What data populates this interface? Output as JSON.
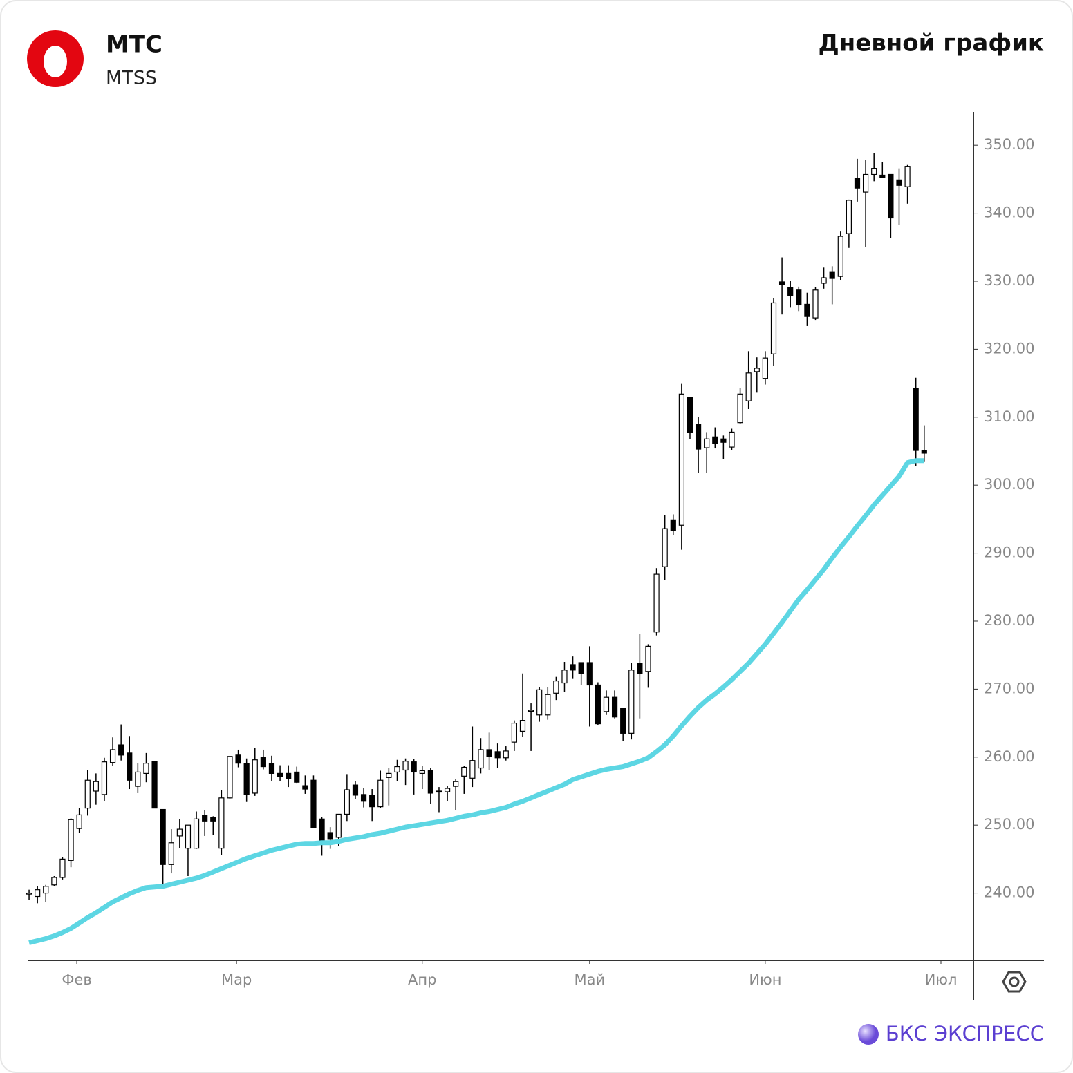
{
  "header": {
    "company": "МТС",
    "ticker": "MTSS",
    "brand": "БКС ЭКСПРЕСС"
  },
  "chart_data": {
    "type": "candlestick",
    "title": "Дневной график",
    "up_color": "#ffffff",
    "down_color": "#000000",
    "ma_color": "#5dd6e3",
    "ylim": [
      230.1,
      355.1
    ],
    "yticks": [
      {
        "value": 240,
        "label": "240.00"
      },
      {
        "value": 250,
        "label": "250.00"
      },
      {
        "value": 260,
        "label": "260.00"
      },
      {
        "value": 270,
        "label": "270.00"
      },
      {
        "value": 280,
        "label": "280.00"
      },
      {
        "value": 290,
        "label": "290.00"
      },
      {
        "value": 300,
        "label": "300.00"
      },
      {
        "value": 310,
        "label": "310.00"
      },
      {
        "value": 320,
        "label": "320.00"
      },
      {
        "value": 330,
        "label": "330.00"
      },
      {
        "value": 340,
        "label": "340.00"
      },
      {
        "value": 350,
        "label": "350.00"
      }
    ],
    "xlim": [
      -0.17,
      113.05
    ],
    "xticks": [
      {
        "value": 5.7,
        "label": "Фев"
      },
      {
        "value": 24.8,
        "label": "Мар"
      },
      {
        "value": 47,
        "label": "Апр"
      },
      {
        "value": 67,
        "label": "Май"
      },
      {
        "value": 88,
        "label": "Июн"
      },
      {
        "value": 109,
        "label": "Июл"
      }
    ],
    "ohlc": [
      [
        240,
        240.5,
        239,
        240
      ],
      [
        239.5,
        241,
        238.5,
        240.5
      ],
      [
        240,
        241.2,
        238.7,
        241
      ],
      [
        241.2,
        242.5,
        241,
        242.3
      ],
      [
        242.3,
        245.3,
        242,
        245
      ],
      [
        244.8,
        251,
        243.8,
        250.8
      ],
      [
        249.5,
        252.5,
        248.8,
        251.5
      ],
      [
        252.5,
        258.1,
        251.4,
        256.6
      ],
      [
        255,
        257.6,
        253,
        256.4
      ],
      [
        254.5,
        259.9,
        253.5,
        259.3
      ],
      [
        259.2,
        262.9,
        258.7,
        261.1
      ],
      [
        261.8,
        264.8,
        259.5,
        260.3
      ],
      [
        260.6,
        263.1,
        255.3,
        256.6
      ],
      [
        255.7,
        259.1,
        254.7,
        257.8
      ],
      [
        257.6,
        260.6,
        256.3,
        259.1
      ],
      [
        259.4,
        259.4,
        252.6,
        252.5
      ],
      [
        252.3,
        252.3,
        241.3,
        244.2
      ],
      [
        244.2,
        249.4,
        242.9,
        247.4
      ],
      [
        248.4,
        250.9,
        246.6,
        249.4
      ],
      [
        246.6,
        249.9,
        242.5,
        250
      ],
      [
        246.6,
        252,
        246.5,
        250.9
      ],
      [
        251.4,
        252.2,
        248.4,
        250.6
      ],
      [
        251.1,
        251.3,
        248.5,
        250.6
      ],
      [
        246.6,
        255.2,
        245.6,
        254
      ],
      [
        254,
        260.1,
        253.9,
        260.1
      ],
      [
        260.3,
        261.1,
        258.5,
        259.1
      ],
      [
        259.1,
        259.8,
        253.4,
        254.5
      ],
      [
        254.7,
        261.3,
        254.3,
        259.6
      ],
      [
        260,
        261.1,
        258.2,
        258.6
      ],
      [
        259.1,
        260.2,
        256.5,
        257.6
      ],
      [
        257.6,
        258.8,
        256.5,
        257.1
      ],
      [
        257.6,
        258.8,
        255.6,
        256.8
      ],
      [
        257.8,
        258.6,
        256.2,
        256.3
      ],
      [
        255.8,
        257.3,
        254.6,
        255.3
      ],
      [
        256.6,
        257.3,
        249.7,
        249.6
      ],
      [
        250.9,
        251.2,
        245.5,
        247.2
      ],
      [
        248.9,
        249.7,
        246.5,
        247.9
      ],
      [
        248.2,
        251.2,
        246.9,
        251.6
      ],
      [
        251.6,
        257.5,
        250.6,
        255.2
      ],
      [
        255.9,
        256.5,
        253.8,
        254.4
      ],
      [
        254.5,
        255.5,
        252.6,
        253.5
      ],
      [
        254.4,
        255.3,
        250.6,
        252.7
      ],
      [
        252.7,
        258,
        252.5,
        256.6
      ],
      [
        257,
        258.4,
        252.9,
        257.6
      ],
      [
        257.8,
        259.6,
        256.5,
        258.6
      ],
      [
        258.1,
        259.8,
        255.9,
        259.4
      ],
      [
        259.3,
        259.7,
        254.5,
        257.8
      ],
      [
        257.6,
        258.7,
        255.3,
        258
      ],
      [
        258,
        258.4,
        253.1,
        254.7
      ],
      [
        255,
        255.6,
        251.9,
        254.9
      ],
      [
        254.9,
        255.8,
        253.5,
        255.4
      ],
      [
        255.7,
        256.8,
        252.2,
        256.4
      ],
      [
        257.2,
        258.7,
        254.6,
        258.5
      ],
      [
        256.9,
        264.5,
        255.6,
        259.5
      ],
      [
        258.4,
        262.8,
        257.6,
        261.1
      ],
      [
        261.1,
        263.6,
        258.1,
        260.1
      ],
      [
        260.8,
        262,
        258.4,
        259.9
      ],
      [
        259.9,
        261.6,
        259.5,
        260.9
      ],
      [
        262.2,
        265.4,
        260.9,
        265
      ],
      [
        263.8,
        272.3,
        263,
        265.4
      ],
      [
        266.9,
        267.9,
        260.9,
        266.9
      ],
      [
        266.2,
        270.3,
        265.2,
        269.9
      ],
      [
        266.2,
        270.3,
        265.5,
        269.2
      ],
      [
        269.4,
        271.8,
        268.4,
        271.2
      ],
      [
        270.9,
        274,
        269.6,
        272.8
      ],
      [
        273.6,
        274.8,
        271.5,
        272.8
      ],
      [
        273.9,
        273.9,
        270.6,
        272.3
      ],
      [
        273.9,
        276.3,
        264.5,
        270.6
      ],
      [
        270.6,
        271,
        264.7,
        264.9
      ],
      [
        266.7,
        269.8,
        266.2,
        268.8
      ],
      [
        268.8,
        269.8,
        265.7,
        265.9
      ],
      [
        267.2,
        267.2,
        262.4,
        263.5
      ],
      [
        263.5,
        273.8,
        262.6,
        272.8
      ],
      [
        273.8,
        278.1,
        265.7,
        272.3
      ],
      [
        272.6,
        276.6,
        270.2,
        276.3
      ],
      [
        278.4,
        287.8,
        277.9,
        286.9
      ],
      [
        288,
        295.6,
        286,
        293.6
      ],
      [
        294.9,
        295.7,
        292.6,
        293.3
      ],
      [
        294.1,
        314.9,
        290.5,
        313.4
      ],
      [
        312.9,
        312.9,
        306.8,
        307.8
      ],
      [
        308.9,
        310,
        301.8,
        305.3
      ],
      [
        305.5,
        307.8,
        301.8,
        306.8
      ],
      [
        307.1,
        308.5,
        305.4,
        306.1
      ],
      [
        306.8,
        307.3,
        303.8,
        306.3
      ],
      [
        305.6,
        308.3,
        305.2,
        307.8
      ],
      [
        309.2,
        314.3,
        309,
        313.4
      ],
      [
        312.4,
        319.7,
        311.2,
        316.5
      ],
      [
        316.7,
        318.8,
        313.6,
        317.2
      ],
      [
        315.7,
        319.7,
        314.8,
        318.7
      ],
      [
        319.3,
        327.5,
        317.5,
        326.8
      ],
      [
        329.9,
        333.5,
        325.1,
        329.5
      ],
      [
        329.1,
        330.1,
        326.1,
        327.9
      ],
      [
        328.7,
        329.2,
        325.6,
        326.5
      ],
      [
        326.6,
        328.3,
        323.4,
        324.8
      ],
      [
        324.6,
        329.1,
        324.3,
        328.7
      ],
      [
        329.7,
        332,
        328.9,
        330.5
      ],
      [
        331.4,
        332.2,
        326.6,
        330.4
      ],
      [
        330.7,
        337.3,
        330.2,
        336.6
      ],
      [
        337,
        342,
        334.9,
        341.9
      ],
      [
        345.1,
        348,
        341.7,
        343.7
      ],
      [
        343.1,
        347.8,
        335,
        345.7
      ],
      [
        345.7,
        348.8,
        344.7,
        346.6
      ],
      [
        345.6,
        347.5,
        345.2,
        345.3
      ],
      [
        345.7,
        345.7,
        336.3,
        339.3
      ],
      [
        344.9,
        346.6,
        338.3,
        344.1
      ],
      [
        343.9,
        347.1,
        341.4,
        346.9
      ],
      [
        314.2,
        315.8,
        302.8,
        305.1
      ],
      [
        305.1,
        308.8,
        303.5,
        304.7
      ]
    ],
    "ma": [
      232.7,
      233.0,
      233.3,
      233.7,
      234.2,
      234.8,
      235.6,
      236.4,
      237.1,
      237.9,
      238.7,
      239.3,
      239.9,
      240.4,
      240.8,
      240.9,
      241.0,
      241.3,
      241.6,
      241.9,
      242.2,
      242.6,
      243.1,
      243.6,
      244.1,
      244.6,
      245.1,
      245.5,
      245.9,
      246.3,
      246.6,
      246.9,
      247.2,
      247.3,
      247.3,
      247.4,
      247.4,
      247.6,
      247.9,
      248.1,
      248.3,
      248.6,
      248.8,
      249.1,
      249.4,
      249.7,
      249.9,
      250.1,
      250.3,
      250.5,
      250.7,
      251.0,
      251.3,
      251.5,
      251.8,
      252.0,
      252.3,
      252.6,
      253.1,
      253.5,
      254.0,
      254.5,
      255.0,
      255.5,
      256.0,
      256.7,
      257.1,
      257.5,
      257.9,
      258.2,
      258.4,
      258.6,
      259.0,
      259.4,
      259.9,
      260.8,
      261.8,
      263.1,
      264.6,
      266.0,
      267.3,
      268.4,
      269.3,
      270.3,
      271.4,
      272.6,
      273.8,
      275.2,
      276.6,
      278.2,
      279.8,
      281.5,
      283.2,
      284.6,
      286.1,
      287.6,
      289.3,
      290.9,
      292.4,
      294.0,
      295.5,
      297.1,
      298.5,
      299.9,
      301.3,
      303.3,
      303.6,
      303.6
    ]
  }
}
